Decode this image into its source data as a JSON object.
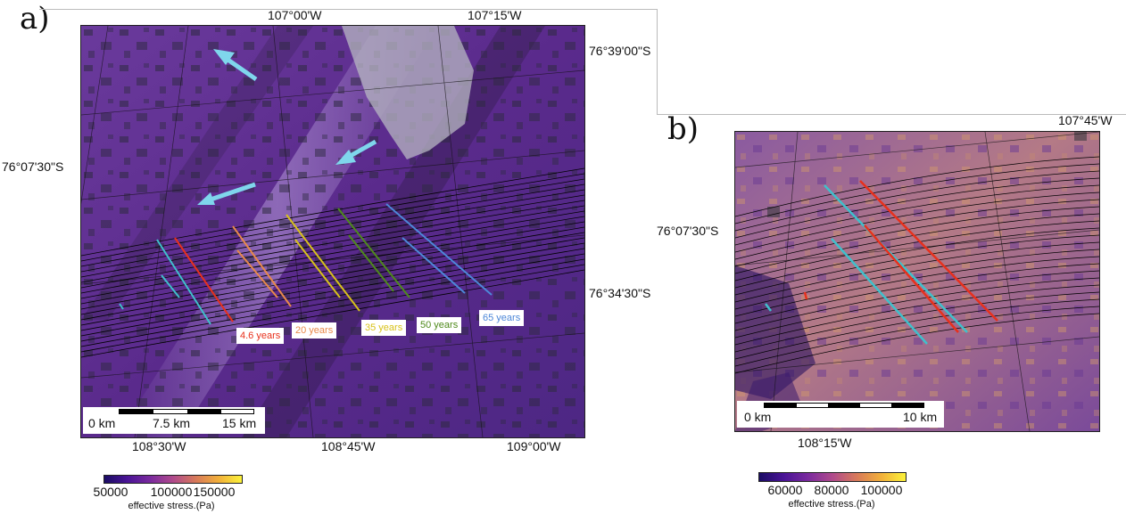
{
  "panel_a": {
    "label": "a)",
    "top_lon_labels": [
      "107°00'W",
      "107°15'W"
    ],
    "bottom_lon_labels": [
      "108°30'W",
      "108°45'W",
      "109°00'W"
    ],
    "left_lat_label": "76°07'30\"S",
    "right_lat_labels": [
      "76°39'00\"S",
      "76°34'30\"S"
    ],
    "line_labels": [
      {
        "text": "4.6 years",
        "color": "#e8301c"
      },
      {
        "text": "20 years",
        "color": "#e8894a"
      },
      {
        "text": "35 years",
        "color": "#d8c21a"
      },
      {
        "text": "50 years",
        "color": "#4f8a1c"
      },
      {
        "text": "65 years",
        "color": "#4d87d8"
      }
    ],
    "scalebar": {
      "labels": [
        "0 km",
        "7.5 km",
        "15 km"
      ]
    },
    "colorbar": {
      "ticks": [
        "50000",
        "100000",
        "150000"
      ],
      "title": "effective stress.(Pa)"
    }
  },
  "panel_b": {
    "label": "b)",
    "top_lon_label": "107°45'W",
    "bottom_lon_label": "108°15'W",
    "left_lat_label": "76°07'30\"S",
    "scalebar": {
      "labels": [
        "0 km",
        "10 km"
      ]
    },
    "colorbar": {
      "ticks": [
        "60000",
        "80000",
        "100000"
      ],
      "title": "effective stress.(Pa)"
    }
  },
  "colors": {
    "flow_arrow": "#7fd6ec",
    "cyan_line": "#3fc0cc",
    "red_line": "#e8301c",
    "colormap": [
      "#1a0c64",
      "#4a1496",
      "#7a2a9e",
      "#b04a8c",
      "#d87a5a",
      "#f2b03a",
      "#fbf23a"
    ]
  }
}
